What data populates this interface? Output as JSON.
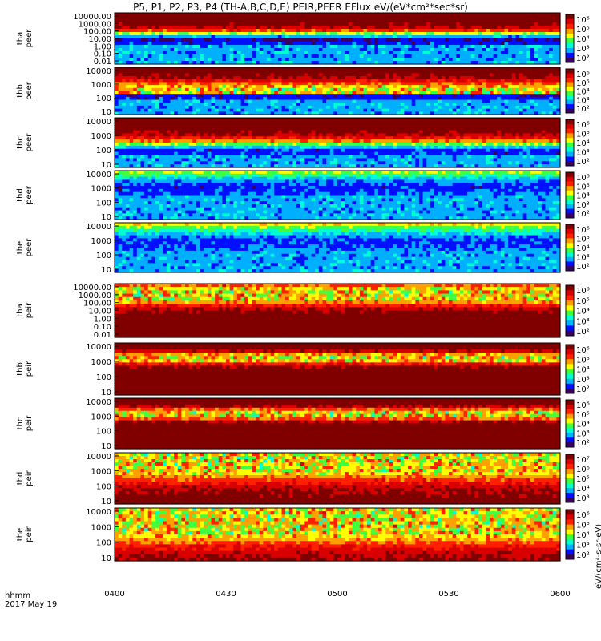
{
  "title": "P5, P1, P2, P3, P4 (TH-A,B,C,D,E) PEIR,PEER EFlux eV/(eV*cm²*sec*sr)",
  "axis": {
    "time_label": "hhmm",
    "date_label": "2017 May 19",
    "time_ticks": [
      "0400",
      "0430",
      "0500",
      "0530",
      "0600"
    ]
  },
  "colorbar_unit": "eV/(cm²-s-sr-eV)",
  "colors": {
    "scale": [
      "#3a0060",
      "#0010ff",
      "#00b0ff",
      "#00ffd0",
      "#40ff40",
      "#ffff00",
      "#ffa000",
      "#ff2000",
      "#d80000",
      "#800000"
    ],
    "background": "#ffffff"
  },
  "chart_data": [
    {
      "type": "heatmap",
      "series": "tha peer",
      "ylabel": "tha\npeer",
      "y_ticks": [
        "10000.00",
        "1000.00",
        "100.00",
        "10.00",
        "1.00",
        "0.10",
        "0.01"
      ],
      "cb_ticks": [
        "10⁶",
        "10⁵",
        "10⁴",
        "10³",
        "10²"
      ],
      "band_center": 0.55,
      "band_width": 0.18,
      "base_level": 0.82,
      "noise_top": 0.0
    },
    {
      "type": "heatmap",
      "series": "thb peer",
      "ylabel": "thb\npeer",
      "y_ticks": [
        "10000",
        "1000",
        "100",
        "10"
      ],
      "cb_ticks": [
        "10⁶",
        "10⁵",
        "10⁴",
        "10³",
        "10²"
      ],
      "band_center": 0.62,
      "band_width": 0.25,
      "base_level": 0.75,
      "noise_top": 0.55
    },
    {
      "type": "heatmap",
      "series": "thc peer",
      "ylabel": "thc\npeer",
      "y_ticks": [
        "10000",
        "1000",
        "100",
        "10"
      ],
      "cb_ticks": [
        "10⁶",
        "10⁵",
        "10⁴",
        "10³",
        "10²"
      ],
      "band_center": 0.7,
      "band_width": 0.22,
      "base_level": 0.72,
      "noise_top": 0.45
    },
    {
      "type": "heatmap",
      "series": "thd peer",
      "ylabel": "thd\npeer",
      "y_ticks": [
        "10000",
        "1000",
        "100",
        "10"
      ],
      "cb_ticks": [
        "10⁶",
        "10⁵",
        "10⁴",
        "10³",
        "10²"
      ],
      "band_center": 0.35,
      "band_width": 0.45,
      "base_level": 0.7,
      "noise_top": 0.0
    },
    {
      "type": "heatmap",
      "series": "the peer",
      "ylabel": "the\npeer",
      "y_ticks": [
        "10000",
        "1000",
        "100",
        "10"
      ],
      "cb_ticks": [
        "10⁶",
        "10⁵",
        "10⁴",
        "10³",
        "10²"
      ],
      "band_center": 0.4,
      "band_width": 0.45,
      "base_level": 0.68,
      "noise_top": 0.0
    },
    {
      "type": "heatmap",
      "series": "tha peir",
      "ylabel": "tha\npeir",
      "y_ticks": [
        "10000.00",
        "1000.00",
        "100.00",
        "10.00",
        "1.00",
        "0.10",
        "0.01"
      ],
      "cb_ticks": [
        "10⁶",
        "10⁵",
        "10⁴",
        "10³",
        "10²"
      ],
      "band_center": 0.18,
      "band_width": 0.15,
      "base_level": 0.35,
      "noise_top": 0.55
    },
    {
      "type": "heatmap",
      "series": "thb peir",
      "ylabel": "thb\npeir",
      "y_ticks": [
        "10000",
        "1000",
        "100",
        "10"
      ],
      "cb_ticks": [
        "10⁶",
        "10⁵",
        "10⁴",
        "10³",
        "10²"
      ],
      "band_center": 0.28,
      "band_width": 0.08,
      "base_level": 0.32,
      "noise_top": 0.4
    },
    {
      "type": "heatmap",
      "series": "thc peir",
      "ylabel": "thc\npeir",
      "y_ticks": [
        "10000",
        "1000",
        "100",
        "10"
      ],
      "cb_ticks": [
        "10⁶",
        "10⁵",
        "10⁴",
        "10³",
        "10²"
      ],
      "band_center": 0.3,
      "band_width": 0.08,
      "base_level": 0.32,
      "noise_top": 0.4
    },
    {
      "type": "heatmap",
      "series": "thd peir",
      "ylabel": "thd\npeir",
      "y_ticks": [
        "10000",
        "1000",
        "100",
        "10"
      ],
      "cb_ticks": [
        "10⁷",
        "10⁶",
        "10⁵",
        "10⁴",
        "10³"
      ],
      "band_center": 0.15,
      "band_width": 0.3,
      "base_level": 0.45,
      "noise_top": 0.8
    },
    {
      "type": "heatmap",
      "series": "the peir",
      "ylabel": "the\npeir",
      "y_ticks": [
        "10000",
        "1000",
        "100",
        "10"
      ],
      "cb_ticks": [
        "10⁶",
        "10⁵",
        "10⁴",
        "10³",
        "10²"
      ],
      "band_center": 0.2,
      "band_width": 0.4,
      "base_level": 0.55,
      "noise_top": 0.85
    }
  ]
}
